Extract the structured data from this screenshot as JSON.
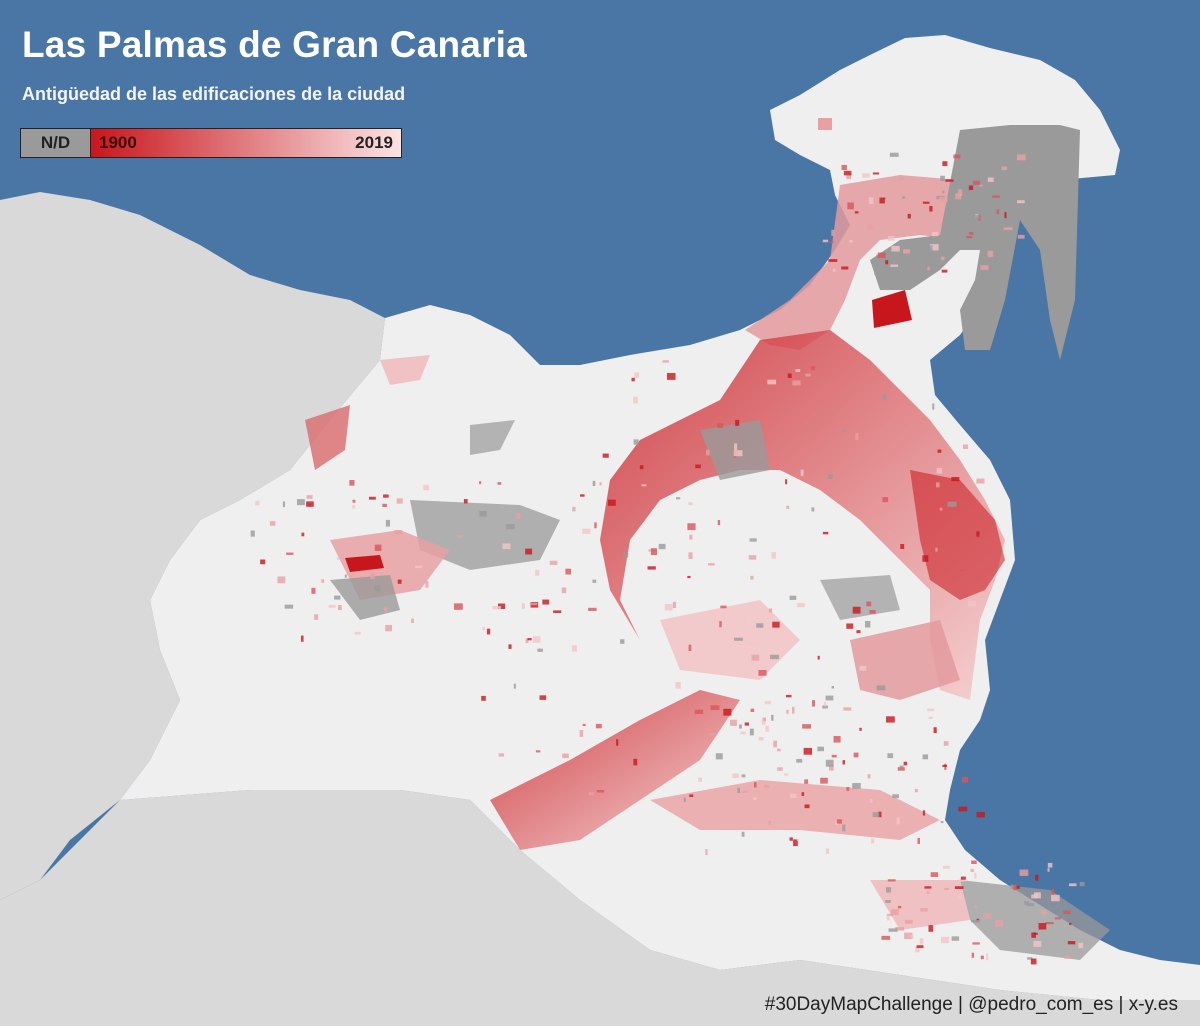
{
  "title": "Las Palmas de Gran Canaria",
  "subtitle": "Antigüedad de las edificaciones de la ciudad",
  "legend": {
    "nodata_label": "N/D",
    "min_label": "1900",
    "max_label": "2019",
    "nodata_color": "#9a9a9a",
    "ramp_from_color": "#c8161d",
    "ramp_to_color": "#fbe3e4"
  },
  "colors": {
    "sea": "#4a76a5",
    "land_outside": "#d9d9d9",
    "city_land": "#efefef",
    "building_old": "#c8161d",
    "building_new": "#f6caca",
    "building_nd": "#9a9a9a"
  },
  "credit": "#30DayMapChallenge | @pedro_com_es | x-y.es"
}
